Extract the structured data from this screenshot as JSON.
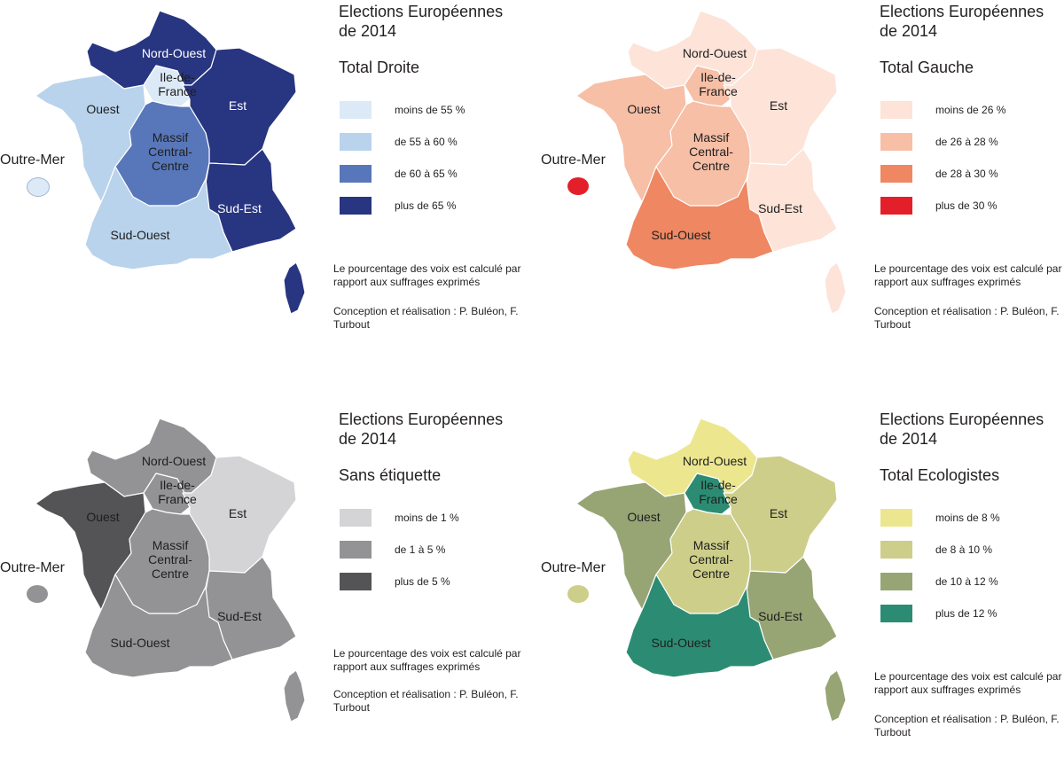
{
  "maps": [
    {
      "id": "droite",
      "title_line1": "Elections Européennes",
      "title_line2": "de 2014",
      "subtitle": "Total Droite",
      "legend": [
        {
          "label": "moins de 55 %",
          "color": "#dce9f6"
        },
        {
          "label": "de 55 à 60 %",
          "color": "#b9d3ec"
        },
        {
          "label": "de 60 à 65 %",
          "color": "#5877ba"
        },
        {
          "label": "plus de 65 %",
          "color": "#283580"
        }
      ],
      "regions": {
        "nord_ouest": "#283580",
        "ile_de_france": "#dce9f6",
        "est": "#283580",
        "ouest": "#b9d3ec",
        "massif_central": "#5877ba",
        "sud_est": "#283580",
        "sud_ouest": "#b9d3ec"
      },
      "outre_mer_color": "#dce9f6",
      "light_labels": [
        "nord_ouest",
        "est",
        "sud_est"
      ],
      "note1": "Le pourcentage des voix est calculé par rapport aux suffrages exprimés",
      "note2": "Conception et réalisation : P. Buléon, F. Turbout"
    },
    {
      "id": "gauche",
      "title_line1": "Elections Européennes",
      "title_line2": "de 2014",
      "subtitle": "Total Gauche",
      "legend": [
        {
          "label": "moins de 26 %",
          "color": "#fde3d8"
        },
        {
          "label": "de 26 à 28 %",
          "color": "#f6bfa6"
        },
        {
          "label": "de 28 à 30 %",
          "color": "#ef8762"
        },
        {
          "label": "plus de 30 %",
          "color": "#e3202a"
        }
      ],
      "regions": {
        "nord_ouest": "#fde3d8",
        "ile_de_france": "#f6bfa6",
        "est": "#fde3d8",
        "ouest": "#f6bfa6",
        "massif_central": "#f6bfa6",
        "sud_est": "#fde3d8",
        "sud_ouest": "#ef8762"
      },
      "outre_mer_color": "#e3202a",
      "light_labels": [],
      "note1": "Le pourcentage des voix est calculé par rapport aux suffrages exprimés",
      "note2": "Conception et réalisation : P. Buléon, F. Turbout"
    },
    {
      "id": "sans_etiquette",
      "title_line1": "Elections Européennes",
      "title_line2": "de 2014",
      "subtitle": "Sans étiquette",
      "legend": [
        {
          "label": "moins de 1 %",
          "color": "#d4d4d6"
        },
        {
          "label": "de 1 à 5 %",
          "color": "#939396"
        },
        {
          "label": "plus de 5 %",
          "color": "#545456"
        }
      ],
      "regions": {
        "nord_ouest": "#939396",
        "ile_de_france": "#939396",
        "est": "#d4d4d6",
        "ouest": "#545456",
        "massif_central": "#939396",
        "sud_est": "#939396",
        "sud_ouest": "#939396"
      },
      "outre_mer_color": "#939396",
      "light_labels": [],
      "note1": "Le pourcentage des voix est calculé par rapport aux suffrages exprimés",
      "note2": "Conception et réalisation : P. Buléon, F. Turbout"
    },
    {
      "id": "ecologistes",
      "title_line1": "Elections Européennes",
      "title_line2": "de 2014",
      "subtitle": "Total Ecologistes",
      "legend": [
        {
          "label": "moins de 8 %",
          "color": "#ece78e"
        },
        {
          "label": "de 8 à 10 %",
          "color": "#cdce8a"
        },
        {
          "label": "de 10 à 12 %",
          "color": "#97a574"
        },
        {
          "label": "plus de 12 %",
          "color": "#2c8c73"
        }
      ],
      "regions": {
        "nord_ouest": "#ece78e",
        "ile_de_france": "#2c8c73",
        "est": "#cdce8a",
        "ouest": "#97a574",
        "massif_central": "#cdce8a",
        "sud_est": "#97a574",
        "sud_ouest": "#2c8c73"
      },
      "outre_mer_color": "#cdce8a",
      "light_labels": [],
      "note1": "Le pourcentage des voix est calculé par rapport aux suffrages exprimés",
      "note2": "Conception et réalisation : P. Buléon, F. Turbout"
    }
  ],
  "region_labels": {
    "nord_ouest": [
      "Nord-Ouest"
    ],
    "ile_de_france": [
      "Ile-de-",
      "France"
    ],
    "est": [
      "Est"
    ],
    "ouest": [
      "Ouest"
    ],
    "massif_central": [
      "Massif",
      "Central-",
      "Centre"
    ],
    "sud_est": [
      "Sud-Est"
    ],
    "sud_ouest": [
      "Sud-Ouest"
    ]
  },
  "outre_mer_label": "Outre-Mer"
}
